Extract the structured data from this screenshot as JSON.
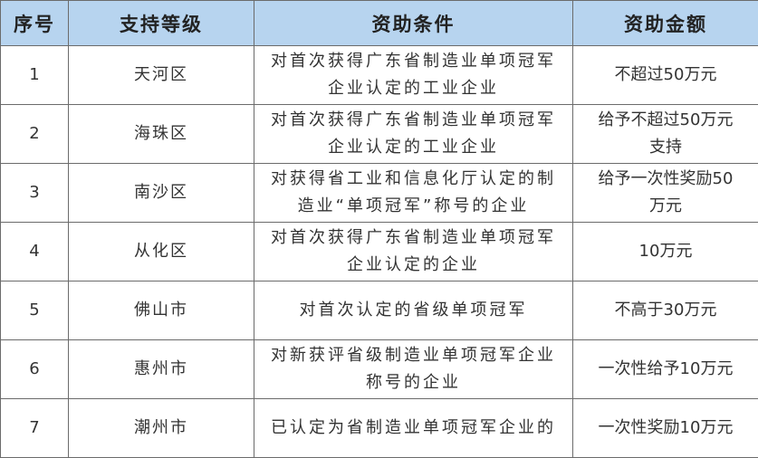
{
  "table": {
    "header": [
      "序号",
      "支持等级",
      "资助条件",
      "资助金额"
    ],
    "rows": [
      [
        [
          "1"
        ],
        [
          "天河区"
        ],
        [
          "对首次获得广东省制造业单项冠军",
          "企业认定的工业企业"
        ],
        [
          "不超过50万元"
        ]
      ],
      [
        [
          "2"
        ],
        [
          "海珠区"
        ],
        [
          "对首次获得广东省制造业单项冠军",
          "企业认定的工业企业"
        ],
        [
          "给予不超过50万元",
          "支持"
        ]
      ],
      [
        [
          "3"
        ],
        [
          "南沙区"
        ],
        [
          "对获得省工业和信息化厅认定的制",
          "造业“单项冠军”称号的企业"
        ],
        [
          "给予一次性奖励50",
          "万元"
        ]
      ],
      [
        [
          "4"
        ],
        [
          "从化区"
        ],
        [
          "对首次获得广东省制造业单项冠军",
          "企业认定的企业"
        ],
        [
          "10万元"
        ]
      ],
      [
        [
          "5"
        ],
        [
          "佛山市"
        ],
        [
          "对首次认定的省级单项冠军"
        ],
        [
          "不高于30万元"
        ]
      ],
      [
        [
          "6"
        ],
        [
          "惠州市"
        ],
        [
          "对新获评省级制造业单项冠军企业",
          "称号的企业"
        ],
        [
          "一次性给予10万元"
        ]
      ],
      [
        [
          "7"
        ],
        [
          "潮州市"
        ],
        [
          "已认定为省制造业单项冠军企业的"
        ],
        [
          "一次性奖励10万元"
        ]
      ]
    ]
  }
}
